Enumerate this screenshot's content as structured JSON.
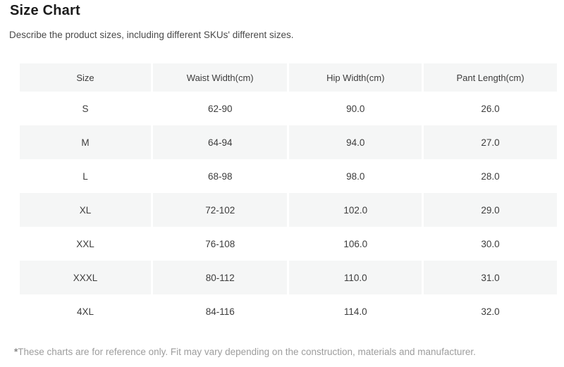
{
  "page": {
    "title": "Size Chart",
    "subtitle": "Describe the product sizes, including different SKUs' different sizes."
  },
  "table": {
    "columns": [
      "Size",
      "Waist Width(cm)",
      "Hip Width(cm)",
      "Pant Length(cm)"
    ],
    "rows": [
      [
        "S",
        "62-90",
        "90.0",
        "26.0"
      ],
      [
        "M",
        "64-94",
        "94.0",
        "27.0"
      ],
      [
        "L",
        "68-98",
        "98.0",
        "28.0"
      ],
      [
        "XL",
        "72-102",
        "102.0",
        "29.0"
      ],
      [
        "XXL",
        "76-108",
        "106.0",
        "30.0"
      ],
      [
        "XXXL",
        "80-112",
        "110.0",
        "31.0"
      ],
      [
        "4XL",
        "84-116",
        "114.0",
        "32.0"
      ]
    ]
  },
  "footnote": {
    "marker": "*",
    "text": "These charts are for reference only. Fit may vary depending on the construction, materials and manufacturer."
  },
  "colors": {
    "stripe_bg": "#f5f6f6",
    "title_text": "#1c1c1c",
    "subtitle_text": "#4a4a4a",
    "cell_text": "#3d3d3d",
    "footnote_text": "#9d9d9d"
  }
}
